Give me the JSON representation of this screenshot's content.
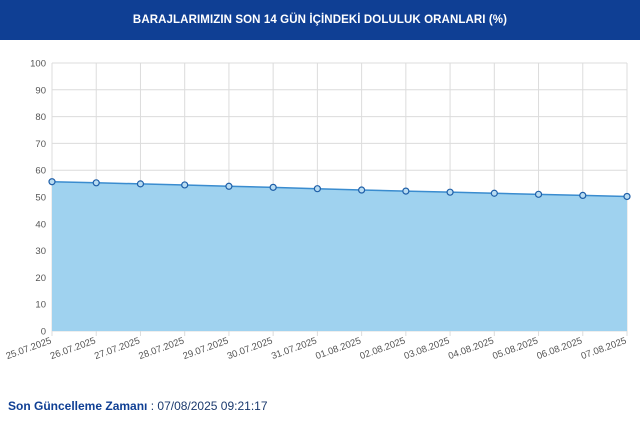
{
  "header": {
    "title": "BARAJLARIMIZIN SON 14 GÜN İÇİNDEKİ DOLULUK ORANLARI (%)"
  },
  "footer": {
    "label": "Son Güncelleme Zamanı",
    "separator": " : ",
    "value": "07/08/2025 09:21:17"
  },
  "colors": {
    "header_bg": "#0f3f94",
    "area_fill": "#9fd2ef",
    "line": "#3a8ccf",
    "marker_fill": "#b8dcf2",
    "marker_stroke": "#1f5fa8",
    "grid": "#dcdcdc"
  },
  "chart_data": {
    "type": "area",
    "categories": [
      "25.07.2025",
      "26.07.2025",
      "27.07.2025",
      "28.07.2025",
      "29.07.2025",
      "30.07.2025",
      "31.07.2025",
      "01.08.2025",
      "02.08.2025",
      "03.08.2025",
      "04.08.2025",
      "05.08.2025",
      "06.08.2025",
      "07.08.2025"
    ],
    "series": [
      {
        "values": [
          55.7,
          55.3,
          54.9,
          54.5,
          54.0,
          53.6,
          53.1,
          52.6,
          52.2,
          51.8,
          51.4,
          51.0,
          50.6,
          50.2
        ]
      }
    ],
    "ylim": [
      0,
      100
    ],
    "yticks": [
      0,
      10,
      20,
      30,
      40,
      50,
      60,
      70,
      80,
      90,
      100
    ],
    "grid": true,
    "legend": "none"
  }
}
